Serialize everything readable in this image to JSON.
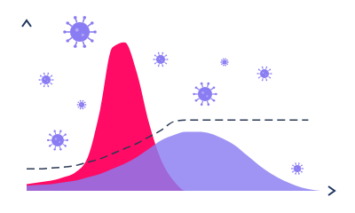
{
  "chart_data": {
    "type": "area",
    "x": [
      0,
      4,
      8,
      12,
      16,
      20,
      24,
      28,
      32,
      36,
      40,
      44,
      48,
      52,
      56,
      60,
      64,
      68,
      72,
      76,
      80,
      84,
      88,
      92,
      96
    ],
    "xlim": [
      0,
      100
    ],
    "ylim": [
      0,
      100
    ],
    "tick_labels": false,
    "series": [
      {
        "type": "area",
        "color": "#ff0a64",
        "values": [
          4,
          5,
          6,
          8,
          11,
          20,
          48,
          85,
          88,
          70,
          40,
          18,
          6,
          0,
          0,
          0,
          0,
          0,
          0,
          0,
          0,
          0,
          0,
          0,
          0
        ]
      },
      {
        "type": "area",
        "color": "#8a7cf2",
        "values": [
          3,
          3.5,
          4,
          5,
          6,
          8,
          10,
          13,
          16,
          20,
          25,
          30,
          33,
          35,
          35,
          34,
          31,
          27,
          21,
          15,
          10,
          6,
          3,
          1,
          0
        ]
      },
      {
        "type": "line",
        "color": "#2b3a55",
        "line_style": "dashed",
        "values": [
          13,
          13,
          13.5,
          14,
          15,
          17,
          19,
          22,
          25,
          28,
          32,
          36,
          41,
          42,
          42,
          42,
          42,
          42,
          42,
          42,
          42,
          42,
          42,
          42,
          null
        ]
      }
    ]
  }
}
